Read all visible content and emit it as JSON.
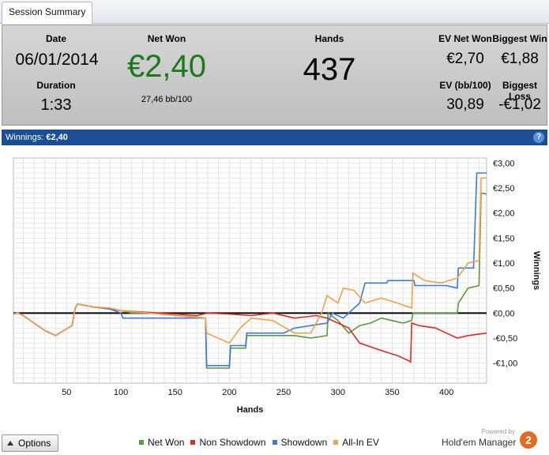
{
  "tab": {
    "label": "Session Summary"
  },
  "summary": {
    "date_label": "Date",
    "date_value": "06/01/2014",
    "duration_label": "Duration",
    "duration_value": "1:33",
    "net_won_label": "Net Won",
    "net_won_value": "€2,40",
    "net_won_color": "#1a7a1a",
    "bb100_value": "27,46 bb/100",
    "hands_label": "Hands",
    "hands_value": "437",
    "ev_net_won_label": "EV Net Won",
    "ev_net_won_value": "€2,70",
    "biggest_win_label": "Biggest Win",
    "biggest_win_value": "€1,88",
    "ev_bb100_label": "EV (bb/100)",
    "ev_bb100_value": "30,89",
    "biggest_loss_label": "Biggest Loss",
    "biggest_loss_value": "-€1,02"
  },
  "chart_header": {
    "title": "Winnings:",
    "value": "€2,40",
    "help_label": "?"
  },
  "chart_data": {
    "type": "line",
    "xlabel": "Hands",
    "ylabel": "Winnings",
    "xlim": [
      1,
      437
    ],
    "ylim": [
      -1.4,
      3.1
    ],
    "x_ticks": [
      50,
      100,
      150,
      200,
      250,
      300,
      350,
      400
    ],
    "y_ticks": [
      3.0,
      2.5,
      2.0,
      1.5,
      1.0,
      0.5,
      0.0,
      -0.5,
      -1.0
    ],
    "y_tick_labels": [
      "€3,00",
      "€2,50",
      "€2,00",
      "€1,50",
      "€1,00",
      "€0,50",
      "€0,00",
      "-€0,50",
      "-€1,00"
    ],
    "grid": true,
    "legend_position": "bottom",
    "series": [
      {
        "name": "Net Won",
        "color": "#5a9a3a",
        "points": [
          [
            1,
            -0.02
          ],
          [
            5,
            0.0
          ],
          [
            10,
            -0.05
          ],
          [
            20,
            -0.2
          ],
          [
            30,
            -0.35
          ],
          [
            40,
            -0.45
          ],
          [
            45,
            -0.38
          ],
          [
            55,
            -0.25
          ],
          [
            58,
            0.1
          ],
          [
            60,
            0.18
          ],
          [
            75,
            0.12
          ],
          [
            90,
            0.1
          ],
          [
            100,
            0.05
          ],
          [
            110,
            0.0
          ],
          [
            130,
            0.0
          ],
          [
            150,
            -0.05
          ],
          [
            170,
            -0.08
          ],
          [
            178,
            -0.1
          ],
          [
            179,
            -1.1
          ],
          [
            200,
            -1.1
          ],
          [
            201,
            -0.7
          ],
          [
            215,
            -0.7
          ],
          [
            216,
            -0.45
          ],
          [
            260,
            -0.45
          ],
          [
            275,
            -0.5
          ],
          [
            290,
            -0.45
          ],
          [
            291,
            0.0
          ],
          [
            300,
            -0.15
          ],
          [
            310,
            -0.4
          ],
          [
            320,
            -0.25
          ],
          [
            330,
            -0.2
          ],
          [
            340,
            -0.1
          ],
          [
            350,
            -0.15
          ],
          [
            360,
            -0.2
          ],
          [
            368,
            -0.15
          ],
          [
            369,
            0.0
          ],
          [
            380,
            0.0
          ],
          [
            390,
            0.0
          ],
          [
            400,
            0.0
          ],
          [
            410,
            0.0
          ],
          [
            411,
            0.2
          ],
          [
            420,
            0.5
          ],
          [
            430,
            0.55
          ],
          [
            432,
            2.4
          ],
          [
            437,
            2.38
          ]
        ]
      },
      {
        "name": "Non Showdown",
        "color": "#e02b1e",
        "points": [
          [
            1,
            -0.02
          ],
          [
            5,
            0.0
          ],
          [
            10,
            -0.05
          ],
          [
            20,
            -0.2
          ],
          [
            30,
            -0.35
          ],
          [
            40,
            -0.45
          ],
          [
            45,
            -0.38
          ],
          [
            55,
            -0.25
          ],
          [
            58,
            0.1
          ],
          [
            60,
            0.18
          ],
          [
            75,
            0.12
          ],
          [
            90,
            0.08
          ],
          [
            100,
            0.05
          ],
          [
            120,
            0.02
          ],
          [
            150,
            -0.02
          ],
          [
            170,
            -0.05
          ],
          [
            180,
            0.0
          ],
          [
            200,
            -0.02
          ],
          [
            220,
            -0.05
          ],
          [
            240,
            0.0
          ],
          [
            260,
            -0.1
          ],
          [
            280,
            -0.05
          ],
          [
            290,
            -0.1
          ],
          [
            300,
            -0.2
          ],
          [
            310,
            -0.3
          ],
          [
            320,
            -0.6
          ],
          [
            340,
            -0.75
          ],
          [
            355,
            -0.85
          ],
          [
            365,
            -0.95
          ],
          [
            367,
            -0.98
          ],
          [
            368,
            -0.2
          ],
          [
            375,
            -0.25
          ],
          [
            390,
            -0.3
          ],
          [
            400,
            -0.4
          ],
          [
            410,
            -0.5
          ],
          [
            420,
            -0.45
          ],
          [
            430,
            -0.42
          ],
          [
            437,
            -0.4
          ]
        ]
      },
      {
        "name": "Showdown",
        "color": "#3b78e7",
        "points": [
          [
            1,
            -0.02
          ],
          [
            5,
            0.0
          ],
          [
            10,
            -0.05
          ],
          [
            20,
            -0.2
          ],
          [
            30,
            -0.35
          ],
          [
            40,
            -0.45
          ],
          [
            45,
            -0.38
          ],
          [
            55,
            -0.25
          ],
          [
            58,
            0.1
          ],
          [
            60,
            0.18
          ],
          [
            75,
            0.12
          ],
          [
            90,
            0.08
          ],
          [
            100,
            0.0
          ],
          [
            102,
            -0.1
          ],
          [
            150,
            -0.1
          ],
          [
            178,
            -0.1
          ],
          [
            179,
            -1.05
          ],
          [
            200,
            -1.05
          ],
          [
            201,
            -0.65
          ],
          [
            215,
            -0.65
          ],
          [
            216,
            -0.4
          ],
          [
            250,
            -0.4
          ],
          [
            260,
            -0.3
          ],
          [
            290,
            -0.2
          ],
          [
            295,
            0.0
          ],
          [
            305,
            -0.1
          ],
          [
            310,
            0.0
          ],
          [
            320,
            0.2
          ],
          [
            325,
            0.6
          ],
          [
            345,
            0.6
          ],
          [
            346,
            0.65
          ],
          [
            370,
            0.65
          ],
          [
            371,
            0.55
          ],
          [
            400,
            0.55
          ],
          [
            410,
            0.5
          ],
          [
            411,
            0.9
          ],
          [
            425,
            0.9
          ],
          [
            428,
            2.8
          ],
          [
            437,
            2.8
          ]
        ]
      },
      {
        "name": "All-In EV",
        "color": "#f4a04a",
        "points": [
          [
            1,
            -0.02
          ],
          [
            5,
            0.0
          ],
          [
            10,
            -0.05
          ],
          [
            20,
            -0.2
          ],
          [
            30,
            -0.35
          ],
          [
            40,
            -0.45
          ],
          [
            45,
            -0.38
          ],
          [
            55,
            -0.25
          ],
          [
            58,
            0.1
          ],
          [
            60,
            0.18
          ],
          [
            75,
            0.12
          ],
          [
            90,
            0.1
          ],
          [
            100,
            0.05
          ],
          [
            150,
            -0.05
          ],
          [
            178,
            -0.1
          ],
          [
            179,
            -0.4
          ],
          [
            200,
            -0.6
          ],
          [
            210,
            -0.3
          ],
          [
            220,
            -0.1
          ],
          [
            240,
            -0.15
          ],
          [
            260,
            -0.4
          ],
          [
            275,
            -0.4
          ],
          [
            285,
            0.0
          ],
          [
            290,
            0.35
          ],
          [
            300,
            0.2
          ],
          [
            305,
            0.5
          ],
          [
            315,
            0.45
          ],
          [
            325,
            0.2
          ],
          [
            340,
            0.3
          ],
          [
            355,
            0.2
          ],
          [
            368,
            0.1
          ],
          [
            369,
            0.8
          ],
          [
            380,
            0.65
          ],
          [
            395,
            0.6
          ],
          [
            410,
            0.7
          ],
          [
            420,
            1.0
          ],
          [
            430,
            1.05
          ],
          [
            432,
            2.7
          ],
          [
            437,
            2.7
          ]
        ]
      }
    ],
    "zero_line_color": "#000000"
  },
  "footer": {
    "options_label": "Options",
    "legend": [
      {
        "label": "Net Won",
        "color": "#5a9a3a"
      },
      {
        "label": "Non Showdown",
        "color": "#e02b1e"
      },
      {
        "label": "Showdown",
        "color": "#3b78e7"
      },
      {
        "label": "All-In EV",
        "color": "#f4a04a"
      }
    ],
    "powered_by": "Powered by",
    "brand_name": "Hold'em Manager",
    "brand_badge": "2"
  }
}
